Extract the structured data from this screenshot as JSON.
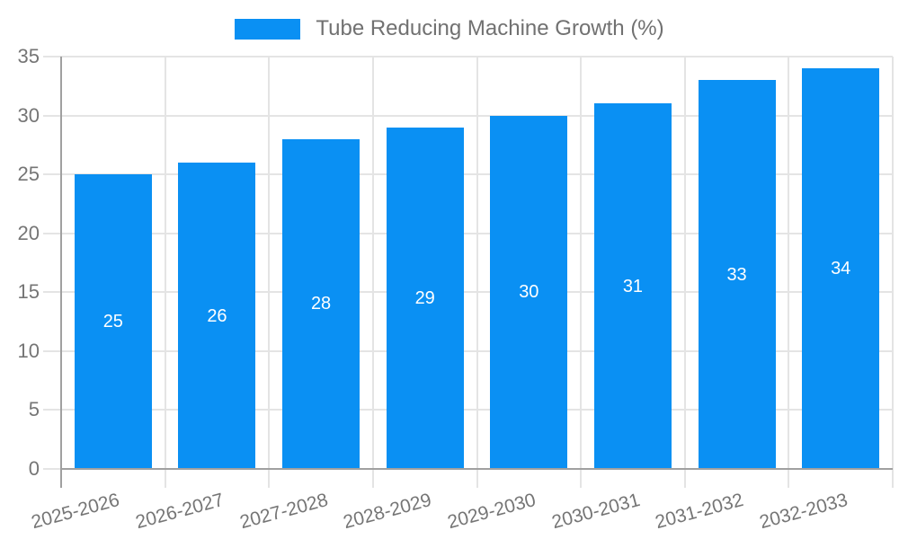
{
  "chart_data": {
    "type": "bar",
    "title": "Tube Reducing Machine Growth (%)",
    "categories": [
      "2025-2026",
      "2026-2027",
      "2027-2028",
      "2028-2029",
      "2029-2030",
      "2030-2031",
      "2031-2032",
      "2032-2033"
    ],
    "series": [
      {
        "name": "Tube Reducing Machine Growth (%)",
        "values": [
          25,
          26,
          28,
          29,
          30,
          31,
          33,
          34
        ]
      }
    ],
    "value_labels": [
      "25",
      "26",
      "28",
      "29",
      "30",
      "31",
      "33",
      "34"
    ],
    "y_tick_labels": [
      "0",
      "5",
      "10",
      "15",
      "20",
      "25",
      "30",
      "35"
    ],
    "ylim": [
      0,
      35
    ],
    "ytick_step": 5,
    "grid": true,
    "legend_position": "top",
    "x_label_rotation_deg": -15,
    "colors": {
      "bar": "#0a90f3",
      "value_label": "#ffffff",
      "axis_text": "#757575",
      "legend_text": "#717171",
      "grid_line": "#e4e4e4",
      "axis_line": "#a0a0a0",
      "background": "#ffffff"
    }
  }
}
